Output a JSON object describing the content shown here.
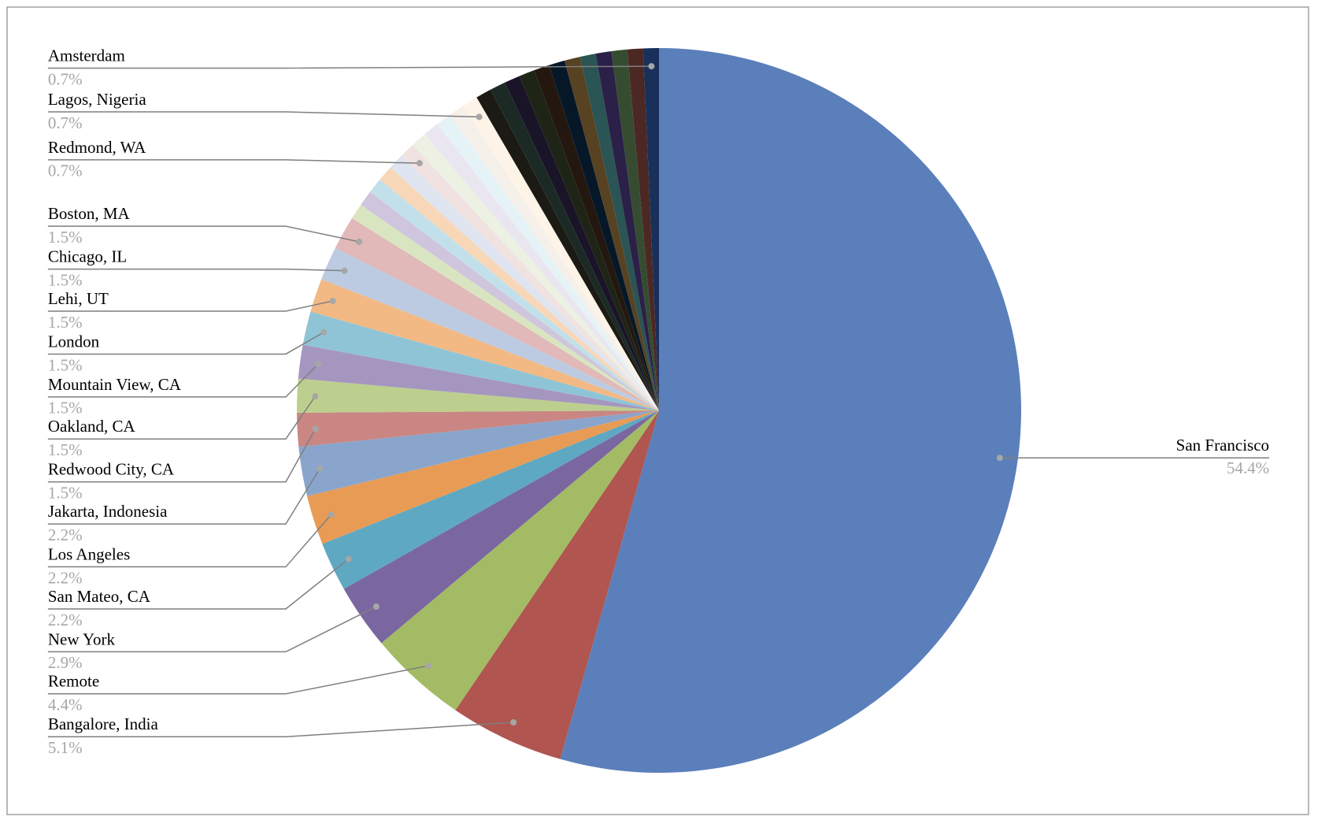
{
  "chart_data": {
    "type": "pie",
    "categories": [
      "San Francisco",
      "Bangalore, India",
      "Remote",
      "New York",
      "San Mateo, CA",
      "Los Angeles",
      "Jakarta, Indonesia",
      "Redwood City, CA",
      "Oakland, CA",
      "Mountain View, CA",
      "London",
      "Lehi, UT",
      "Chicago, IL",
      "Boston, MA",
      null,
      null,
      null,
      null,
      null,
      "Redmond, WA",
      null,
      null,
      null,
      null,
      "Lagos, Nigeria",
      null,
      null,
      null,
      null,
      null,
      null,
      null,
      null,
      null,
      null,
      null,
      "Amsterdam"
    ],
    "values": [
      54.4,
      5.1,
      4.4,
      2.9,
      2.2,
      2.2,
      2.2,
      1.5,
      1.5,
      1.5,
      1.5,
      1.5,
      1.5,
      1.5,
      0.7,
      0.7,
      0.7,
      0.7,
      0.7,
      0.7,
      0.7,
      0.7,
      0.7,
      0.7,
      0.7,
      0.7,
      0.7,
      0.7,
      0.7,
      0.7,
      0.7,
      0.7,
      0.7,
      0.7,
      0.7,
      0.7,
      0.7
    ],
    "value_labels": [
      "54.4%",
      "5.1%",
      "4.4%",
      "2.9%",
      "2.2%",
      "2.2%",
      "2.2%",
      "1.5%",
      "1.5%",
      "1.5%",
      "1.5%",
      "1.5%",
      "1.5%",
      "1.5%",
      null,
      null,
      null,
      null,
      null,
      "0.7%",
      null,
      null,
      null,
      null,
      "0.7%",
      null,
      null,
      null,
      null,
      null,
      null,
      null,
      null,
      null,
      null,
      null,
      "0.7%"
    ],
    "colors": [
      "#5b7fba",
      "#b05550",
      "#a3bb64",
      "#7a67a0",
      "#5fa8c2",
      "#e89b55",
      "#8aa5cc",
      "#c98683",
      "#bccf8e",
      "#a596c0",
      "#8fc4d6",
      "#f2b985",
      "#bccbe2",
      "#e0b9b8",
      "#d9e5c1",
      "#cfc5dc",
      "#c2e0e9",
      "#f8d7b9",
      "#dee5f0",
      "#f0e2e1",
      "#ecf1e4",
      "#e9e6ef",
      "#e6f3f6",
      "#f5f0ea",
      "#fdf3e7",
      "#1c1a14",
      "#1c2a26",
      "#1a1428",
      "#1e2416",
      "#23170f",
      "#061828",
      "#574222",
      "#2b5454",
      "#2a2048",
      "#364c30",
      "#4c2824",
      "#18305a"
    ]
  }
}
